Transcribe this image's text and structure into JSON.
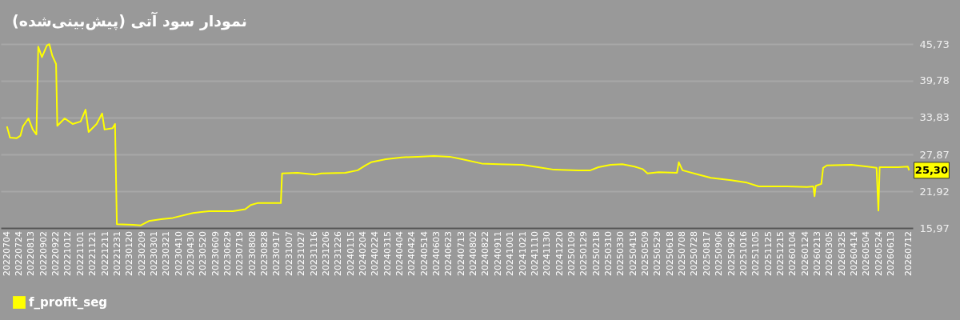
{
  "chart_data": {
    "type": "line",
    "title": "نمودار سود آتی (پیش‌بینی‌شده)",
    "x": [
      "2022-07-04",
      "2022-07-09",
      "2022-07-20",
      "2022-07-26",
      "2022-07-30",
      "2022-08-08",
      "2022-08-15",
      "2022-08-21",
      "2022-08-24",
      "2022-08-30",
      "2022-09-07",
      "2022-09-11",
      "2022-09-16",
      "2022-09-22",
      "2022-09-24",
      "2022-10-06",
      "2022-10-19",
      "2022-11-01",
      "2022-11-09",
      "2022-11-14",
      "2022-11-27",
      "2022-12-06",
      "2022-12-10",
      "2022-12-23",
      "2022-12-27",
      "2022-12-30",
      "2023-01-25",
      "2023-02-07",
      "2023-02-20",
      "2023-03-12",
      "2023-03-31",
      "2023-05-03",
      "2023-05-29",
      "2023-07-07",
      "2023-07-27",
      "2023-08-05",
      "2023-08-16",
      "2023-09-23",
      "2023-09-25",
      "2023-10-20",
      "2023-11-18",
      "2023-11-28",
      "2024-01-06",
      "2024-01-26",
      "2024-02-08",
      "2024-02-17",
      "2024-03-12",
      "2024-04-07",
      "2024-05-03",
      "2024-05-29",
      "2024-06-24",
      "2024-07-14",
      "2024-08-15",
      "2024-09-11",
      "2024-10-20",
      "2024-11-15",
      "2024-12-11",
      "2025-01-19",
      "2025-02-08",
      "2025-02-21",
      "2025-03-13",
      "2025-04-01",
      "2025-04-21",
      "2025-05-04",
      "2025-05-12",
      "2025-05-30",
      "2025-06-29",
      "2025-07-02",
      "2025-07-08",
      "2025-08-03",
      "2025-08-23",
      "2025-09-25",
      "2025-10-21",
      "2025-11-09",
      "2025-12-25",
      "2026-01-27",
      "2026-02-06",
      "2026-02-08",
      "2026-02-10",
      "2026-02-19",
      "2026-02-22",
      "2026-02-28",
      "2026-04-09",
      "2026-05-05",
      "2026-05-20",
      "2026-05-23",
      "2026-05-25",
      "2026-06-24",
      "2026-07-10",
      "2026-07-12"
    ],
    "series": [
      {
        "name": "f_profit_seg",
        "color": "#ffff00",
        "values": [
          32.4,
          30.6,
          30.5,
          30.9,
          32.4,
          33.7,
          31.9,
          31.1,
          45.3,
          43.6,
          45.5,
          45.7,
          43.8,
          42.5,
          32.5,
          33.7,
          32.8,
          33.2,
          35.1,
          31.5,
          32.8,
          34.5,
          31.9,
          32.1,
          32.8,
          16.6,
          16.5,
          16.4,
          17.1,
          17.4,
          17.6,
          18.4,
          18.7,
          18.7,
          19.0,
          19.7,
          20.0,
          20.0,
          24.8,
          24.9,
          24.6,
          24.8,
          24.9,
          25.3,
          26.1,
          26.6,
          27.1,
          27.4,
          27.5,
          27.6,
          27.5,
          27.1,
          26.4,
          26.3,
          26.2,
          25.8,
          25.4,
          25.3,
          25.3,
          25.8,
          26.2,
          26.3,
          25.9,
          25.5,
          24.8,
          25.0,
          24.9,
          26.6,
          25.3,
          24.6,
          24.1,
          23.7,
          23.3,
          22.7,
          22.7,
          22.6,
          22.7,
          21.1,
          22.8,
          23.1,
          25.7,
          26.1,
          26.2,
          25.9,
          25.7,
          18.8,
          25.8,
          25.8,
          25.9,
          25.3
        ]
      }
    ],
    "xlim": [
      "2022-06-24",
      "2026-07-18"
    ],
    "xticks": [
      {
        "value": "2022-07-04",
        "label": "20220704"
      },
      {
        "value": "2022-07-24",
        "label": "20220724"
      },
      {
        "value": "2022-08-13",
        "label": "20220813"
      },
      {
        "value": "2022-09-02",
        "label": "20220902"
      },
      {
        "value": "2022-09-22",
        "label": "20220922"
      },
      {
        "value": "2022-10-12",
        "label": "20221012"
      },
      {
        "value": "2022-11-01",
        "label": "20221101"
      },
      {
        "value": "2022-11-21",
        "label": "20221121"
      },
      {
        "value": "2022-12-11",
        "label": "20221211"
      },
      {
        "value": "2022-12-31",
        "label": "20221231"
      },
      {
        "value": "2023-01-20",
        "label": "20230120"
      },
      {
        "value": "2023-02-09",
        "label": "20230209"
      },
      {
        "value": "2023-03-01",
        "label": "20230301"
      },
      {
        "value": "2023-03-21",
        "label": "20230321"
      },
      {
        "value": "2023-04-10",
        "label": "20230410"
      },
      {
        "value": "2023-04-30",
        "label": "20230430"
      },
      {
        "value": "2023-05-20",
        "label": "20230520"
      },
      {
        "value": "2023-06-09",
        "label": "20230609"
      },
      {
        "value": "2023-06-29",
        "label": "20230629"
      },
      {
        "value": "2023-07-19",
        "label": "20230719"
      },
      {
        "value": "2023-08-08",
        "label": "20230808"
      },
      {
        "value": "2023-08-28",
        "label": "20230828"
      },
      {
        "value": "2023-09-17",
        "label": "20230917"
      },
      {
        "value": "2023-10-07",
        "label": "20231007"
      },
      {
        "value": "2023-10-27",
        "label": "20231027"
      },
      {
        "value": "2023-11-16",
        "label": "20231116"
      },
      {
        "value": "2023-12-06",
        "label": "20231206"
      },
      {
        "value": "2023-12-26",
        "label": "20231226"
      },
      {
        "value": "2024-01-15",
        "label": "20240115"
      },
      {
        "value": "2024-02-04",
        "label": "20240204"
      },
      {
        "value": "2024-02-24",
        "label": "20240224"
      },
      {
        "value": "2024-03-15",
        "label": "20240315"
      },
      {
        "value": "2024-04-04",
        "label": "20240404"
      },
      {
        "value": "2024-04-24",
        "label": "20240424"
      },
      {
        "value": "2024-05-14",
        "label": "20240514"
      },
      {
        "value": "2024-06-03",
        "label": "20240603"
      },
      {
        "value": "2024-06-23",
        "label": "20240623"
      },
      {
        "value": "2024-07-13",
        "label": "20240713"
      },
      {
        "value": "2024-08-02",
        "label": "20240802"
      },
      {
        "value": "2024-08-22",
        "label": "20240822"
      },
      {
        "value": "2024-09-11",
        "label": "20240911"
      },
      {
        "value": "2024-10-01",
        "label": "20241001"
      },
      {
        "value": "2024-10-21",
        "label": "20241021"
      },
      {
        "value": "2024-11-10",
        "label": "20241110"
      },
      {
        "value": "2024-11-30",
        "label": "20241130"
      },
      {
        "value": "2024-12-20",
        "label": "20241220"
      },
      {
        "value": "2025-01-09",
        "label": "20250109"
      },
      {
        "value": "2025-01-29",
        "label": "20250129"
      },
      {
        "value": "2025-02-18",
        "label": "20250218"
      },
      {
        "value": "2025-03-10",
        "label": "20250310"
      },
      {
        "value": "2025-03-30",
        "label": "20250330"
      },
      {
        "value": "2025-04-19",
        "label": "20250419"
      },
      {
        "value": "2025-05-09",
        "label": "20250509"
      },
      {
        "value": "2025-05-29",
        "label": "20250529"
      },
      {
        "value": "2025-06-18",
        "label": "20250618"
      },
      {
        "value": "2025-07-08",
        "label": "20250708"
      },
      {
        "value": "2025-07-28",
        "label": "20250728"
      },
      {
        "value": "2025-08-17",
        "label": "20250817"
      },
      {
        "value": "2025-09-06",
        "label": "20250906"
      },
      {
        "value": "2025-09-26",
        "label": "20250926"
      },
      {
        "value": "2025-10-16",
        "label": "20251016"
      },
      {
        "value": "2025-11-05",
        "label": "20251105"
      },
      {
        "value": "2025-11-25",
        "label": "20251125"
      },
      {
        "value": "2025-12-15",
        "label": "20251215"
      },
      {
        "value": "2026-01-04",
        "label": "20260104"
      },
      {
        "value": "2026-01-24",
        "label": "20260124"
      },
      {
        "value": "2026-02-13",
        "label": "20260213"
      },
      {
        "value": "2026-03-05",
        "label": "20260305"
      },
      {
        "value": "2026-03-25",
        "label": "20260325"
      },
      {
        "value": "2026-04-14",
        "label": "20260414"
      },
      {
        "value": "2026-05-04",
        "label": "20260504"
      },
      {
        "value": "2026-05-24",
        "label": "20260524"
      },
      {
        "value": "2026-06-13",
        "label": "20260613"
      },
      {
        "value": "2026-07-12",
        "label": "20260712"
      }
    ],
    "ylim": [
      15.97,
      45.73
    ],
    "yticks": [
      {
        "value": 15.97,
        "label": "15,97"
      },
      {
        "value": 21.92,
        "label": "21,92"
      },
      {
        "value": 27.87,
        "label": "27,87"
      },
      {
        "value": 33.83,
        "label": "33,83"
      },
      {
        "value": 39.78,
        "label": "39,78"
      },
      {
        "value": 45.73,
        "label": "45,73"
      }
    ],
    "annotations": [
      {
        "text": "25,30",
        "x": "2026-07-12",
        "y": 25.3
      }
    ],
    "grid": "y",
    "legend": "bottom left"
  }
}
